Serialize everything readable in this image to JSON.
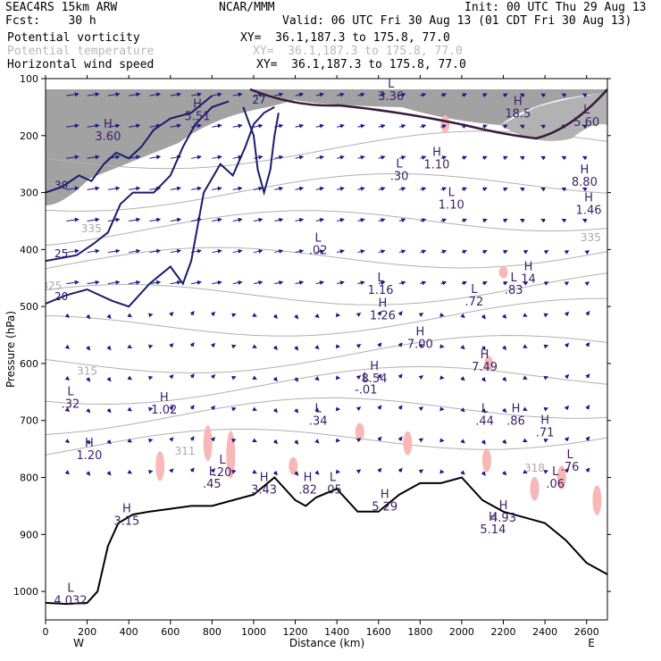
{
  "header": {
    "model": "SEAC4RS 15km ARW",
    "fcst": "Fcst:    30 h",
    "center": "NCAR/MMM",
    "init": "Init: 00 UTC Thu 29 Aug 13",
    "valid": "Valid: 06 UTC Fri 30 Aug 13 (01 CDT Fri 30 Aug 13)",
    "fields": [
      {
        "name": "Potential vorticity",
        "xy": "XY=  36.1,187.3 to 175.8, 77.0",
        "faint": false
      },
      {
        "name": "Potential temperature",
        "xy": "XY=  36.1,187.3 to 175.8, 77.0",
        "faint": true
      },
      {
        "name": "Horizontal wind speed",
        "xy": "XY=  36.1,187.3 to 175.8, 77.0",
        "faint": false
      }
    ]
  },
  "colors": {
    "pv_contour": "#1a1a6e",
    "wind_vector": "#1a1a8a",
    "theta_contour": "#b0b0b0",
    "terrain": "#000000",
    "terrain_fill": "#ffffff",
    "pink_patch": "#f8b8b8",
    "high_pv_shade": "#555555",
    "extrema_label": "#3a1f6a"
  },
  "chart_data": {
    "type": "cross-section",
    "xlabel": "Distance (km)",
    "ylabel": "Pressure (hPa)",
    "xlim": [
      0,
      2700
    ],
    "ylim": [
      1050,
      100
    ],
    "x_ticks": [
      0,
      200,
      400,
      600,
      800,
      1000,
      1200,
      1400,
      1600,
      1800,
      2000,
      2200,
      2400,
      2600
    ],
    "y_ticks": [
      100,
      200,
      300,
      400,
      500,
      600,
      700,
      800,
      900,
      1000
    ],
    "x_end_labels": {
      "left": "W",
      "right": "E"
    },
    "terrain_surface": [
      [
        0,
        1020
      ],
      [
        100,
        1022
      ],
      [
        200,
        1020
      ],
      [
        250,
        1000
      ],
      [
        300,
        920
      ],
      [
        350,
        880
      ],
      [
        420,
        865
      ],
      [
        500,
        860
      ],
      [
        600,
        855
      ],
      [
        700,
        850
      ],
      [
        800,
        850
      ],
      [
        900,
        840
      ],
      [
        1000,
        830
      ],
      [
        1100,
        800
      ],
      [
        1200,
        840
      ],
      [
        1250,
        850
      ],
      [
        1300,
        835
      ],
      [
        1400,
        820
      ],
      [
        1500,
        860
      ],
      [
        1600,
        860
      ],
      [
        1700,
        830
      ],
      [
        1800,
        810
      ],
      [
        1900,
        810
      ],
      [
        2000,
        800
      ],
      [
        2100,
        840
      ],
      [
        2200,
        860
      ],
      [
        2300,
        870
      ],
      [
        2400,
        880
      ],
      [
        2500,
        910
      ],
      [
        2600,
        950
      ],
      [
        2700,
        970
      ]
    ],
    "pv_contours": [
      {
        "label": "20",
        "points": [
          [
            0,
            495
          ],
          [
            100,
            480
          ],
          [
            200,
            470
          ],
          [
            320,
            490
          ],
          [
            400,
            500
          ],
          [
            500,
            460
          ],
          [
            600,
            430
          ],
          [
            660,
            460
          ],
          [
            700,
            420
          ],
          [
            760,
            300
          ],
          [
            840,
            250
          ],
          [
            900,
            270
          ],
          [
            960,
            220
          ],
          [
            1000,
            180
          ],
          [
            1050,
            160
          ],
          [
            1100,
            150
          ]
        ]
      },
      {
        "label": "25",
        "points": [
          [
            0,
            420
          ],
          [
            150,
            410
          ],
          [
            230,
            390
          ],
          [
            300,
            370
          ],
          [
            360,
            320
          ],
          [
            420,
            300
          ],
          [
            520,
            300
          ],
          [
            600,
            270
          ],
          [
            660,
            220
          ],
          [
            720,
            180
          ],
          [
            800,
            150
          ],
          [
            880,
            140
          ]
        ]
      },
      {
        "label": "30",
        "points": [
          [
            0,
            300
          ],
          [
            80,
            290
          ],
          [
            160,
            270
          ],
          [
            220,
            280
          ],
          [
            280,
            250
          ],
          [
            340,
            230
          ],
          [
            400,
            240
          ],
          [
            460,
            220
          ],
          [
            520,
            190
          ],
          [
            600,
            170
          ],
          [
            700,
            160
          ],
          [
            800,
            130
          ]
        ]
      },
      {
        "label": "27",
        "points": [
          [
            950,
            150
          ],
          [
            1000,
            200
          ],
          [
            1020,
            260
          ],
          [
            1050,
            300
          ],
          [
            1080,
            260
          ],
          [
            1100,
            200
          ],
          [
            1120,
            160
          ]
        ]
      }
    ],
    "theta_labels": [
      {
        "text": "335",
        "x": 220,
        "p": 370
      },
      {
        "text": "325",
        "x": 30,
        "p": 470
      },
      {
        "text": "315",
        "x": 200,
        "p": 620
      },
      {
        "text": "311",
        "x": 670,
        "p": 760
      },
      {
        "text": "335",
        "x": 2620,
        "p": 385
      },
      {
        "text": "318",
        "x": 2350,
        "p": 790
      }
    ],
    "extrema": [
      {
        "type": "H",
        "value": "5.51",
        "x": 730,
        "p": 165
      },
      {
        "type": "H",
        "value": "3.60",
        "x": 300,
        "p": 200
      },
      {
        "type": "L",
        "value": "3.36",
        "x": 1660,
        "p": 130
      },
      {
        "type": "H",
        "value": "18.5",
        "x": 2270,
        "p": 160
      },
      {
        "type": "L",
        "value": "5.60",
        "x": 2600,
        "p": 175
      },
      {
        "type": "L",
        "value": ".30",
        "x": 1700,
        "p": 270
      },
      {
        "type": "H",
        "value": "1.10",
        "x": 1880,
        "p": 250
      },
      {
        "type": "L",
        "value": "1.10",
        "x": 1950,
        "p": 320
      },
      {
        "type": "H",
        "value": "8.80",
        "x": 2590,
        "p": 280
      },
      {
        "type": "L",
        "value": ".02",
        "x": 1310,
        "p": 400
      },
      {
        "type": "H",
        "value": "1.46",
        "x": 2610,
        "p": 330
      },
      {
        "type": "L",
        "value": "1.16",
        "x": 1610,
        "p": 470
      },
      {
        "type": "H",
        "value": "14",
        "x": 2320,
        "p": 450
      },
      {
        "type": "L",
        "value": ".83",
        "x": 2250,
        "p": 470
      },
      {
        "type": "L",
        "value": ".72",
        "x": 2060,
        "p": 490
      },
      {
        "type": "H",
        "value": "1.26",
        "x": 1620,
        "p": 515
      },
      {
        "type": "H",
        "value": "7.00",
        "x": 1800,
        "p": 565
      },
      {
        "type": "H",
        "value": "8.54",
        "x": 1580,
        "p": 625
      },
      {
        "type": "L",
        "value": "-.01",
        "x": 1540,
        "p": 645
      },
      {
        "type": "H",
        "value": "7.49",
        "x": 2110,
        "p": 605
      },
      {
        "type": "L",
        "value": ".32",
        "x": 120,
        "p": 670
      },
      {
        "type": "H",
        "value": "1.02",
        "x": 570,
        "p": 680
      },
      {
        "type": "L",
        "value": ".34",
        "x": 1310,
        "p": 700
      },
      {
        "type": "L",
        "value": ".44",
        "x": 2110,
        "p": 700
      },
      {
        "type": "H",
        "value": ".86",
        "x": 2260,
        "p": 700
      },
      {
        "type": "H",
        "value": ".71",
        "x": 2400,
        "p": 720
      },
      {
        "type": "H",
        "value": "1.20",
        "x": 210,
        "p": 760
      },
      {
        "type": "L",
        "value": ".76",
        "x": 2520,
        "p": 780
      },
      {
        "type": "L",
        "value": ".20",
        "x": 850,
        "p": 790
      },
      {
        "type": "L",
        "value": ".45",
        "x": 800,
        "p": 810
      },
      {
        "type": "H",
        "value": "3.43",
        "x": 1050,
        "p": 820
      },
      {
        "type": "H",
        "value": ".82",
        "x": 1260,
        "p": 820
      },
      {
        "type": "L",
        "value": ".05",
        "x": 1380,
        "p": 820
      },
      {
        "type": "H",
        "value": "5.29",
        "x": 1630,
        "p": 850
      },
      {
        "type": "L",
        "value": ".06",
        "x": 2450,
        "p": 810
      },
      {
        "type": "H",
        "value": "4.93",
        "x": 2200,
        "p": 870
      },
      {
        "type": "H",
        "value": "5.14",
        "x": 2150,
        "p": 890
      },
      {
        "type": "H",
        "value": "3.15",
        "x": 390,
        "p": 875
      },
      {
        "type": "L",
        "value": "4.032",
        "x": 120,
        "p": 1015
      }
    ]
  }
}
